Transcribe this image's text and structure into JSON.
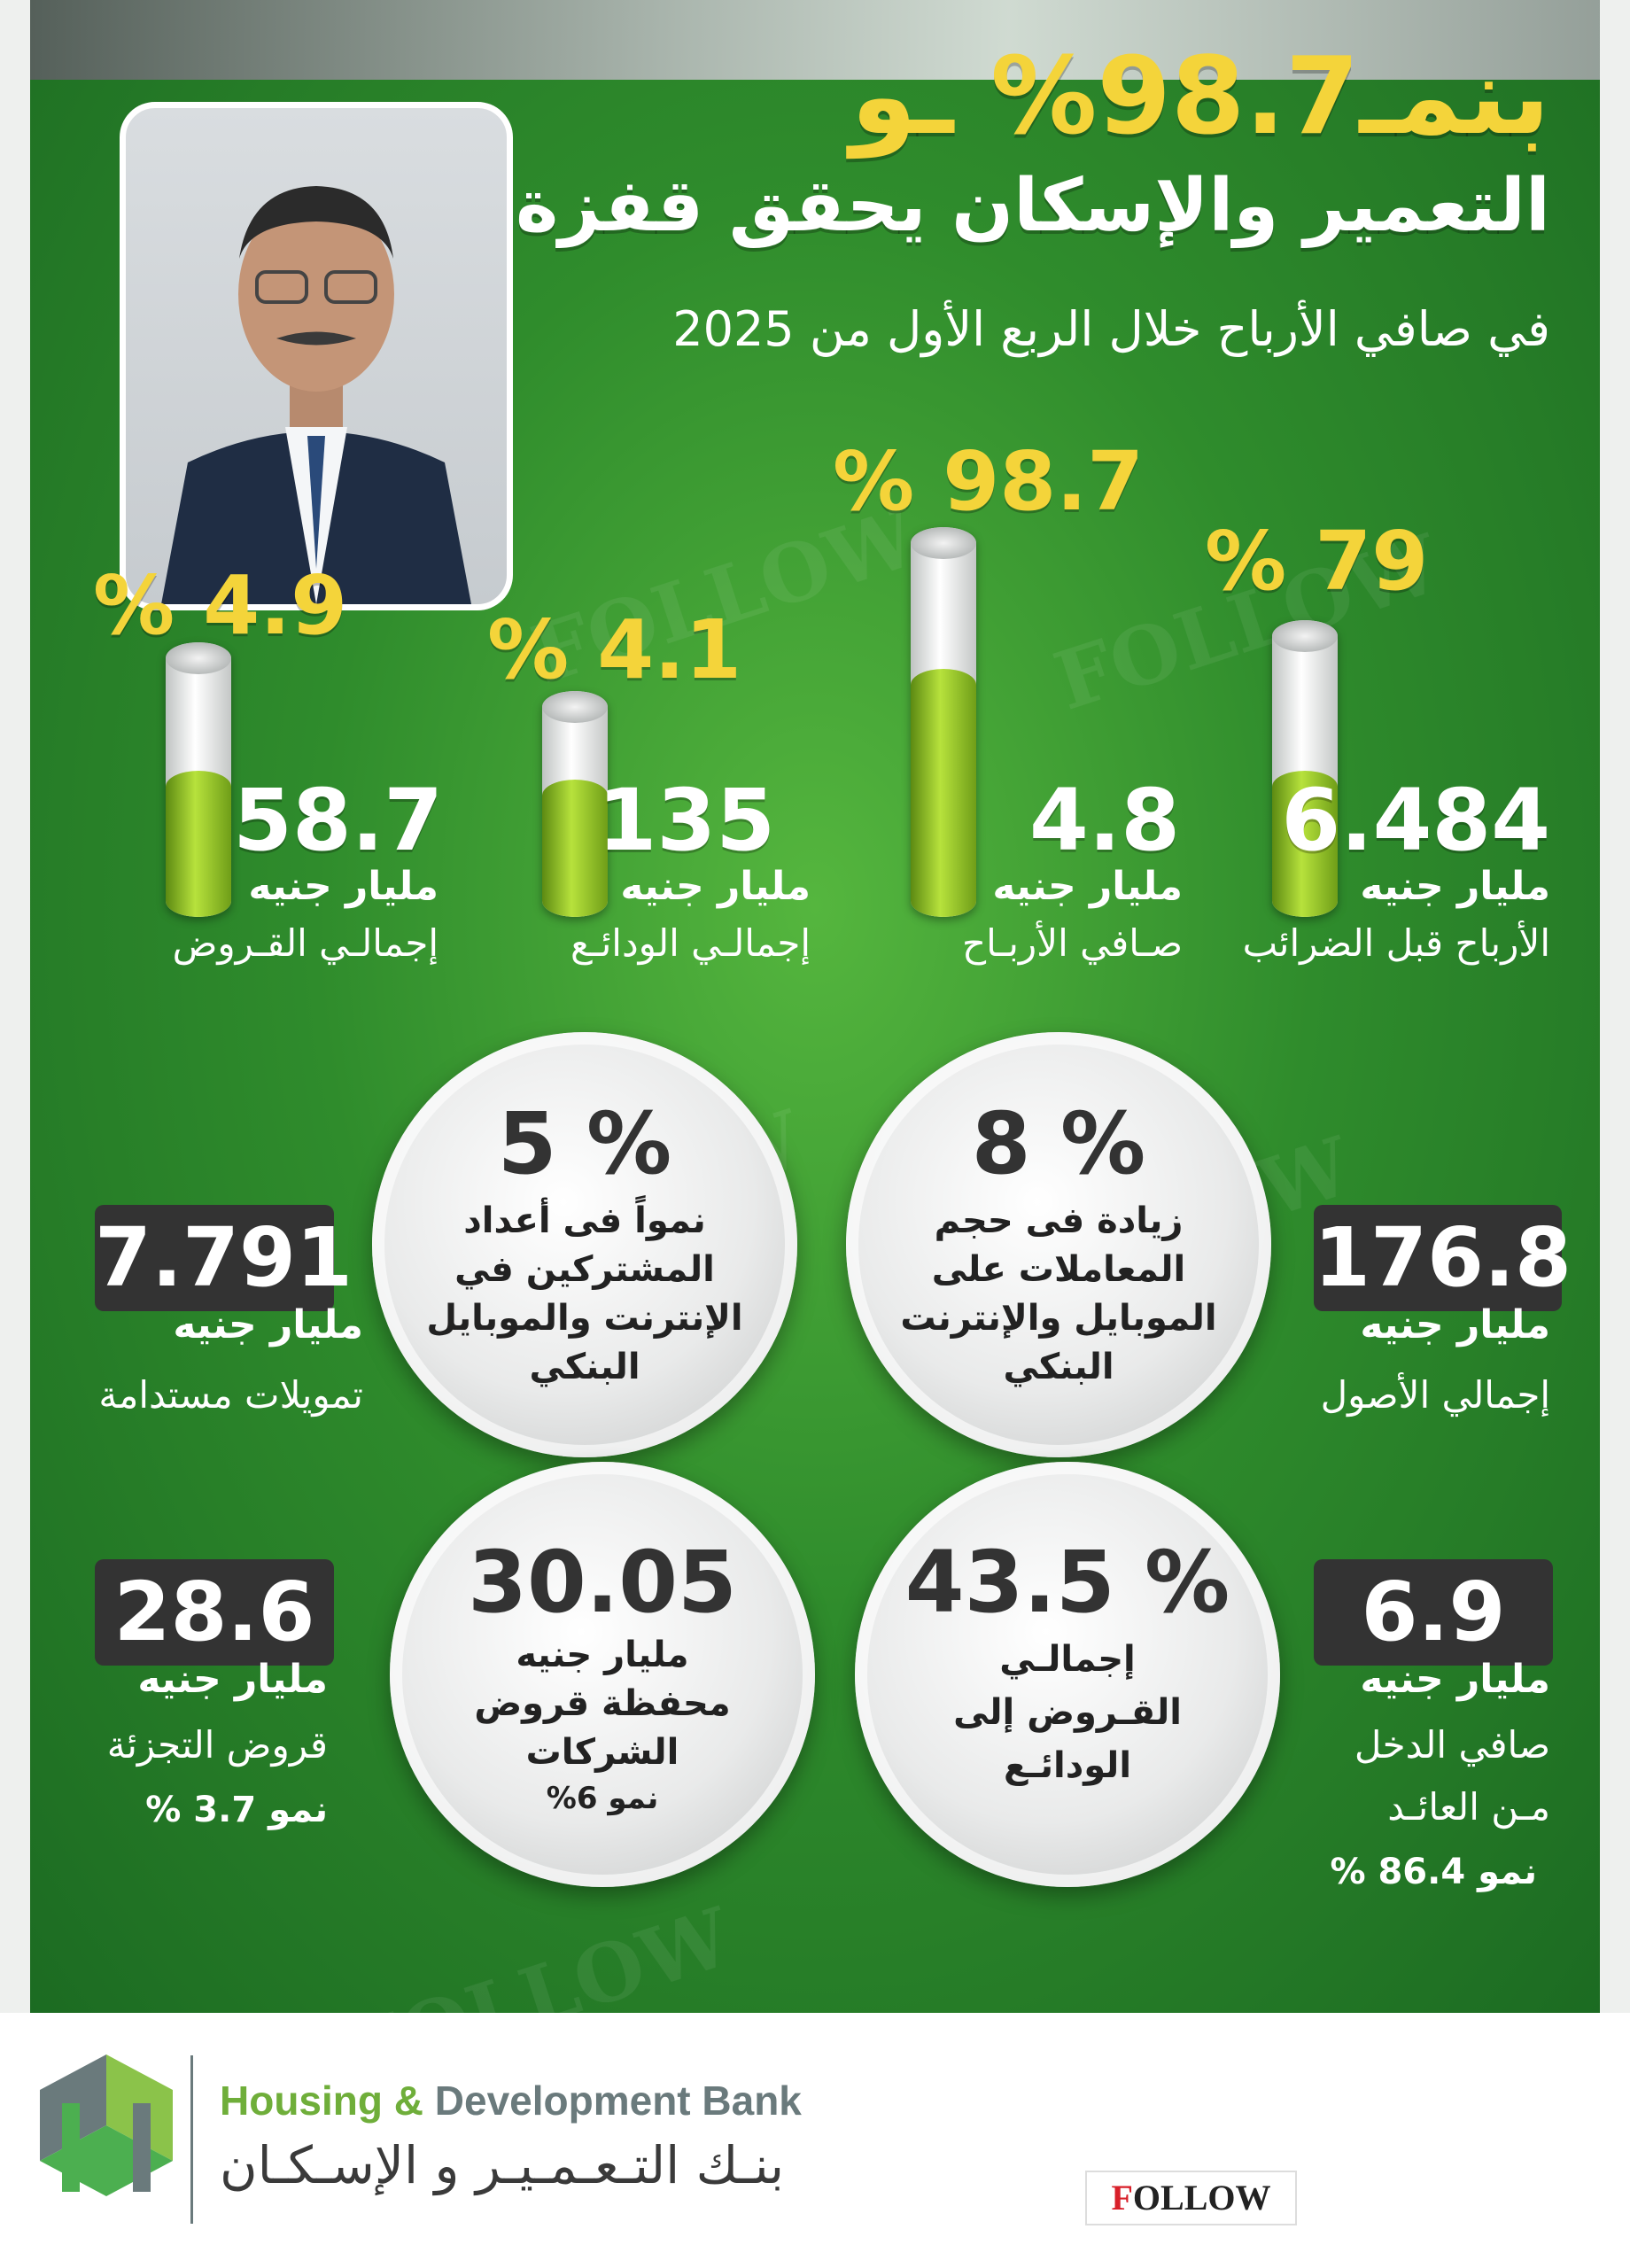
{
  "header": {
    "line1": "بنمـ98.7% ـو",
    "line2": "التعمير والإسكان يحقق قفزة",
    "line3": "في صافي الأرباح خلال الربع الأول من 2025"
  },
  "bars": [
    {
      "pct_label": "% 79",
      "value": "6.484",
      "unit": "مليار جنيه",
      "label": "الأرباح قبل الضرائب",
      "growth": 79
    },
    {
      "pct_label": "% 98.7",
      "value": "4.8",
      "unit": "مليار جنيه",
      "label": "صـافي الأربـاح",
      "growth": 98.7
    },
    {
      "pct_label": "% 4.1",
      "value": "135",
      "unit": "مليار جنيه",
      "label": "إجمالـي الودائـع",
      "growth": 4.1
    },
    {
      "pct_label": "% 4.9",
      "value": "58.7",
      "unit": "مليار جنيه",
      "label": "إجمالـي القـروض",
      "growth": 4.9
    }
  ],
  "row1": {
    "right": {
      "value": "176.8",
      "unit": "مليار جنيه",
      "label": "إجمالي الأصول"
    },
    "circle_right": {
      "big": "% 8",
      "lines": [
        "زيادة فى حجم",
        "المعاملات على",
        "الموبايل والإنترنت",
        "البنكي"
      ]
    },
    "circle_left": {
      "big": "% 5",
      "lines": [
        "نمواً فى أعداد",
        "المشتركين في",
        "الإنترنت والموبايل",
        "البنكي"
      ]
    },
    "left": {
      "value": "7.791",
      "unit": "مليار جنيه",
      "label": "تمويلات مستدامة"
    }
  },
  "row2": {
    "right": {
      "value": "6.9",
      "unit": "مليار جنيه",
      "label1": "صافي الدخل",
      "label2": "مـن العائـد",
      "growth": "نمو 86.4 %"
    },
    "circle_right": {
      "big": "% 43.5",
      "lines": [
        "إجمالـي",
        "القـروض إلى",
        "الودائـع"
      ]
    },
    "circle_left": {
      "big": "30.05",
      "lines": [
        "مليار جنيه",
        "محفظة قروض",
        "الشركات",
        "نمو 6%"
      ]
    },
    "left": {
      "value": "28.6",
      "unit": "مليار جنيه",
      "label": "قروض التجزئة",
      "growth": "نمو 3.7 %"
    }
  },
  "footer": {
    "bank_en_1": "Housing & ",
    "bank_en_2": "Development Bank",
    "bank_ar": "بنـك التـعـمـيـر و الإسـكـان",
    "follow_1": "F",
    "follow_2": "OLLOW"
  },
  "colors": {
    "accent": "#f4d43a",
    "green": "#2f8c2c",
    "bar_fill": "#9ccc2a",
    "dark_box": "#333333"
  }
}
